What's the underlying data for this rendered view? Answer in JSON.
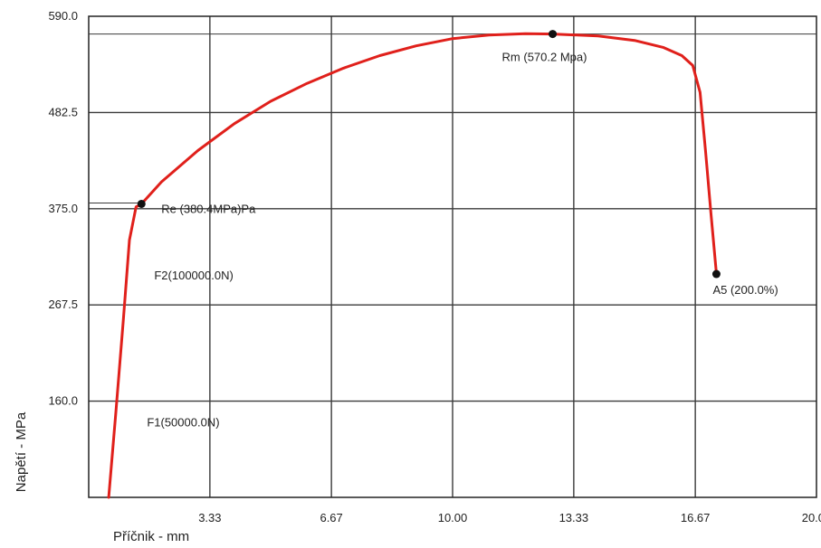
{
  "chart_data": {
    "type": "line",
    "title": "",
    "xlabel": "Příčnik - mm",
    "ylabel": "Napětí - MPa",
    "xlim": [
      0,
      20
    ],
    "ylim": [
      52.5,
      590
    ],
    "grid": true,
    "x_ticks": [
      "3.33",
      "6.67",
      "10.00",
      "13.33",
      "16.67",
      "20.00"
    ],
    "y_ticks": [
      "590.0",
      "482.5",
      "375.0",
      "267.5",
      "160.0"
    ],
    "line_color": "#e0201b",
    "series": [
      {
        "points": [
          [
            0.55,
            52.5
          ],
          [
            0.75,
            150
          ],
          [
            0.95,
            250
          ],
          [
            1.12,
            340
          ],
          [
            1.3,
            377
          ],
          [
            1.45,
            380.4
          ],
          [
            2.0,
            405
          ],
          [
            3.0,
            440
          ],
          [
            4.0,
            470
          ],
          [
            5.0,
            495
          ],
          [
            6.0,
            515
          ],
          [
            7.0,
            532
          ],
          [
            8.0,
            546
          ],
          [
            9.0,
            557
          ],
          [
            10.0,
            565
          ],
          [
            11.0,
            569
          ],
          [
            12.0,
            570.5
          ],
          [
            12.75,
            570.2
          ],
          [
            14.0,
            568
          ],
          [
            15.0,
            563
          ],
          [
            15.8,
            555
          ],
          [
            16.3,
            546
          ],
          [
            16.6,
            535
          ],
          [
            16.8,
            505
          ],
          [
            16.95,
            440
          ],
          [
            17.1,
            370
          ],
          [
            17.25,
            302
          ]
        ]
      }
    ],
    "annotations": [
      {
        "id": "re",
        "label": "Re (380.4MPa)Pa",
        "x": 1.45,
        "y": 380.4,
        "marker": true
      },
      {
        "id": "rm",
        "label": "Rm (570.2 Mpa)",
        "x": 12.75,
        "y": 570.2,
        "marker": true
      },
      {
        "id": "a5",
        "label": "A5 (200.0%)",
        "x": 17.25,
        "y": 302,
        "marker": true
      },
      {
        "id": "f2",
        "label": "F2(100000.0N)",
        "x": 1.8,
        "y": 301,
        "marker": false
      },
      {
        "id": "f1",
        "label": "F1(50000.0N)",
        "x": 1.6,
        "y": 137,
        "marker": false
      }
    ]
  }
}
